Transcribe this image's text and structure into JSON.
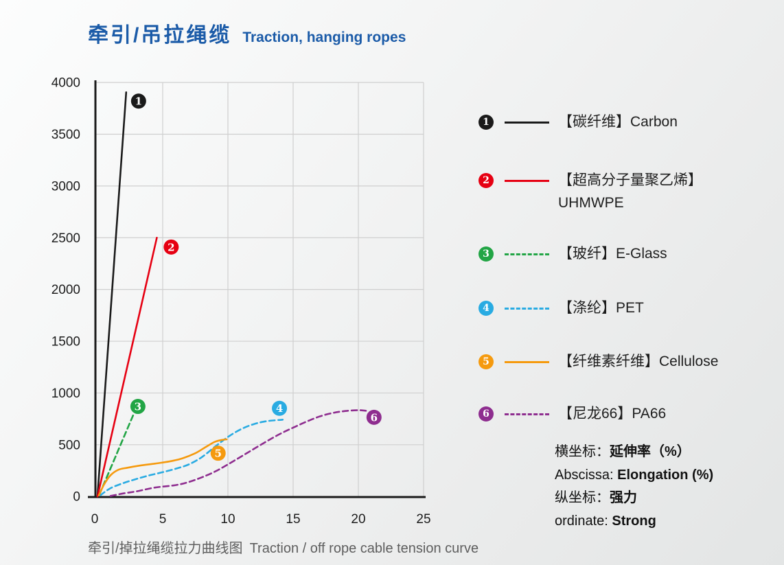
{
  "page": {
    "title_zh": "牵引/吊拉绳缆",
    "title_en": "Traction, hanging ropes",
    "title_color": "#1b5ba8",
    "caption_zh": "牵引/掉拉绳缆拉力曲线图",
    "caption_en": "Traction / off rope cable tension curve"
  },
  "notes": {
    "abscissa_zh_label": "横坐标：",
    "abscissa_zh_value": "延伸率（%）",
    "abscissa_en_label": "Abscissa: ",
    "abscissa_en_value": "Elongation (%)",
    "ordinate_zh_label": "纵坐标：",
    "ordinate_zh_value": "强力",
    "ordinate_en_label": "ordinate: ",
    "ordinate_en_value": "Strong"
  },
  "chart_data": {
    "type": "line",
    "title": "",
    "xlabel": "延伸率 (%) / Elongation (%)",
    "ylabel": "强力 / Strong",
    "xlim": [
      0,
      25
    ],
    "ylim": [
      0,
      4000
    ],
    "x_ticks": [
      0,
      5,
      10,
      15,
      20,
      25
    ],
    "y_ticks": [
      0,
      500,
      1000,
      1500,
      2000,
      2500,
      3000,
      3500,
      4000
    ],
    "grid": true,
    "grid_color": "#cfcfcf",
    "axis_color": "#1a1a1a",
    "tick_label_color": "#1c1c1c",
    "legend_position": "right",
    "series": [
      {
        "number": "1",
        "name_zh": "【碳纤维】",
        "name_en": "Carbon",
        "label": "【碳纤维】Carbon",
        "color": "#1a1a1a",
        "dashed": false,
        "points": [
          [
            0,
            0
          ],
          [
            2.2,
            3905
          ]
        ],
        "marker_pos": [
          3.15,
          3820
        ]
      },
      {
        "number": "2",
        "name_zh": "【超高分子量聚乙烯】",
        "name_en": "UHMWPE",
        "label": "【超高分子量聚乙烯】",
        "label2": "UHMWPE",
        "color": "#e60012",
        "dashed": false,
        "points": [
          [
            0,
            0
          ],
          [
            4.55,
            2500
          ]
        ],
        "marker_pos": [
          5.65,
          2410
        ]
      },
      {
        "number": "3",
        "name_zh": "【玻纤】",
        "name_en": "E-Glass",
        "label": "【玻纤】E-Glass",
        "color": "#22a545",
        "dashed": true,
        "points": [
          [
            0.15,
            20
          ],
          [
            1.5,
            420
          ],
          [
            2.75,
            790
          ]
        ],
        "marker_pos": [
          3.1,
          870
        ]
      },
      {
        "number": "4",
        "name_zh": "【涤纶】",
        "name_en": "PET",
        "label": "【涤纶】PET",
        "color": "#29abe2",
        "dashed": true,
        "points": [
          [
            0.2,
            10
          ],
          [
            1,
            80
          ],
          [
            2,
            130
          ],
          [
            3,
            170
          ],
          [
            4,
            205
          ],
          [
            5,
            235
          ],
          [
            6,
            268
          ],
          [
            7,
            310
          ],
          [
            8,
            380
          ],
          [
            9,
            480
          ],
          [
            10,
            575
          ],
          [
            11,
            650
          ],
          [
            12,
            700
          ],
          [
            13,
            728
          ],
          [
            14.2,
            742
          ]
        ],
        "marker_pos": [
          13.95,
          852
        ]
      },
      {
        "number": "5",
        "name_zh": "【纤维素纤维】",
        "name_en": "Cellulose",
        "label": "【纤维素纤维】Cellulose",
        "color": "#f59a0e",
        "dashed": false,
        "points": [
          [
            0.1,
            10
          ],
          [
            0.5,
            115
          ],
          [
            1,
            205
          ],
          [
            1.6,
            258
          ],
          [
            2.3,
            278
          ],
          [
            3.2,
            298
          ],
          [
            4.4,
            318
          ],
          [
            5.5,
            338
          ],
          [
            6.5,
            368
          ],
          [
            7.5,
            418
          ],
          [
            8.3,
            478
          ],
          [
            9,
            528
          ],
          [
            9.6,
            548
          ],
          [
            9.9,
            552
          ]
        ],
        "marker_pos": [
          9.25,
          418
        ]
      },
      {
        "number": "6",
        "name_zh": "【尼龙66】",
        "name_en": "PA66",
        "label": "【尼龙66】PA66",
        "color": "#8e2d8f",
        "dashed": true,
        "points": [
          [
            1,
            5
          ],
          [
            2,
            30
          ],
          [
            3,
            50
          ],
          [
            4.4,
            86
          ],
          [
            6,
            110
          ],
          [
            7,
            140
          ],
          [
            8,
            185
          ],
          [
            9,
            240
          ],
          [
            10,
            310
          ],
          [
            11,
            385
          ],
          [
            12,
            460
          ],
          [
            13,
            535
          ],
          [
            14,
            605
          ],
          [
            15,
            665
          ],
          [
            16,
            722
          ],
          [
            17,
            772
          ],
          [
            18,
            806
          ],
          [
            19,
            826
          ],
          [
            20,
            834
          ],
          [
            20.6,
            828
          ]
        ],
        "marker_pos": [
          21.2,
          765
        ]
      }
    ]
  }
}
